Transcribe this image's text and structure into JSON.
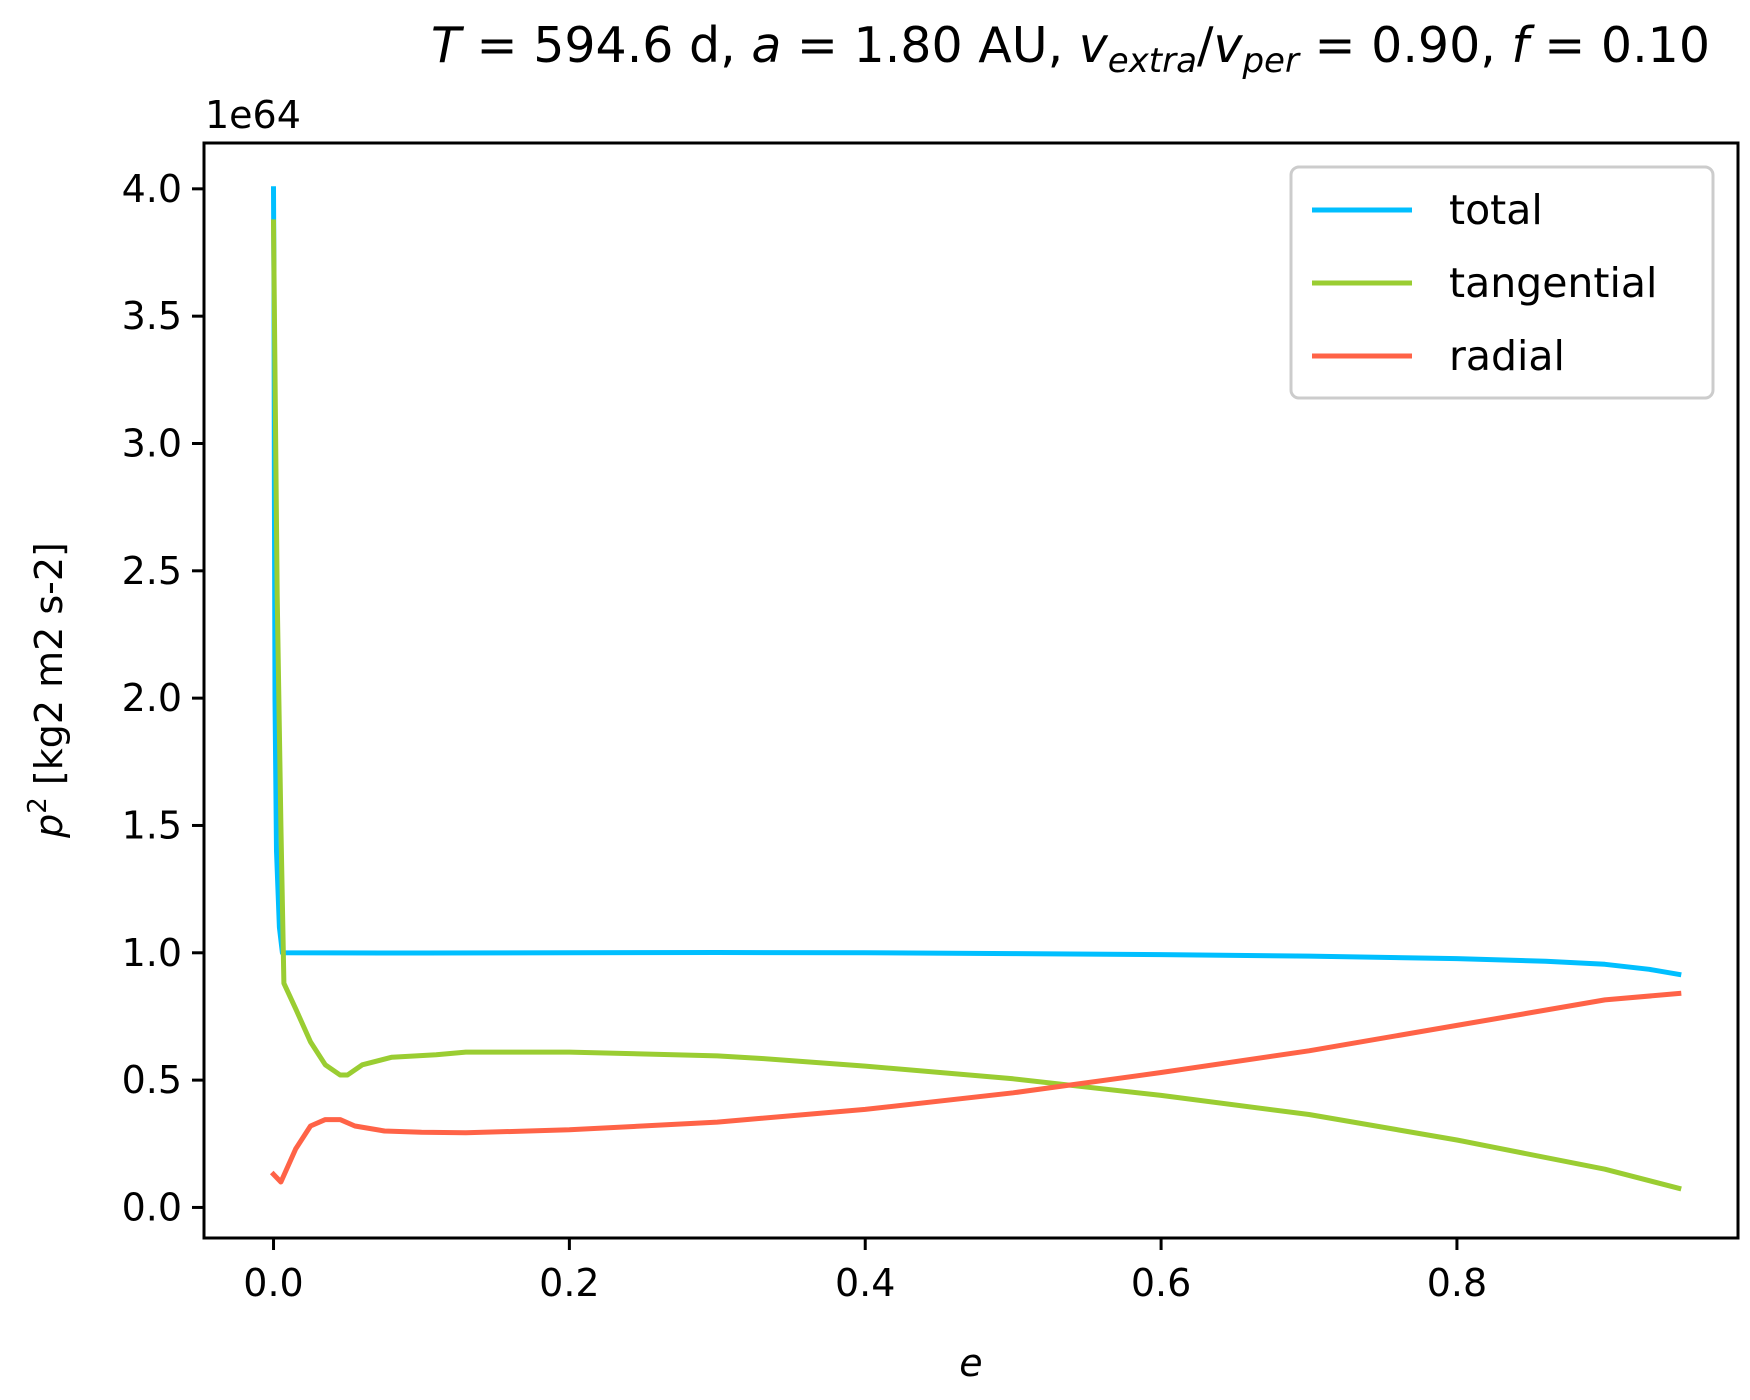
{
  "title": {
    "T_sym": "T",
    "T_val": " = 594.6 d, ",
    "a_sym": "a",
    "a_val": " = 1.80 AU, ",
    "v_sym": "v",
    "v_sub1": "extra",
    "slash": "/",
    "v_sub2": "per",
    "v_val": " = 0.90, ",
    "f_sym": "f",
    "f_val": " = 0.10"
  },
  "axes": {
    "x_label": "e",
    "y_label_p": "p",
    "y_label_exp": "2",
    "y_label_units": " [kg2 m2 s-2]",
    "y_offset_text": "1e64"
  },
  "chart_data": {
    "type": "line",
    "title": "T = 594.6 d, a = 1.80 AU, v_extra/v_per = 0.90, f = 0.10",
    "xlabel": "e",
    "ylabel": "p^2 [kg2 m2 s-2]",
    "y_scale_note": "1e64",
    "xlim": [
      -0.047,
      0.99
    ],
    "ylim": [
      -0.12,
      4.18
    ],
    "grid": false,
    "legend_position": "top-right",
    "x_ticks": [
      "0.0",
      "0.2",
      "0.4",
      "0.6",
      "0.8"
    ],
    "x_tick_values": [
      0.0,
      0.2,
      0.4,
      0.6,
      0.8
    ],
    "y_ticks": [
      "0.0",
      "0.5",
      "1.0",
      "1.5",
      "2.0",
      "2.5",
      "3.0",
      "3.5",
      "4.0"
    ],
    "y_tick_values": [
      0.0,
      0.5,
      1.0,
      1.5,
      2.0,
      2.5,
      3.0,
      3.5,
      4.0
    ],
    "series": [
      {
        "name": "total",
        "color": "#00bfff",
        "points": [
          [
            0.0,
            4.0
          ],
          [
            0.0003,
            3.6
          ],
          [
            0.0006,
            2.8
          ],
          [
            0.001,
            2.0
          ],
          [
            0.002,
            1.4
          ],
          [
            0.004,
            1.1
          ],
          [
            0.006,
            1.0
          ],
          [
            0.1,
            0.999
          ],
          [
            0.2,
            1.0
          ],
          [
            0.3,
            1.001
          ],
          [
            0.4,
            1.0
          ],
          [
            0.5,
            0.997
          ],
          [
            0.6,
            0.993
          ],
          [
            0.7,
            0.987
          ],
          [
            0.8,
            0.977
          ],
          [
            0.86,
            0.967
          ],
          [
            0.9,
            0.955
          ],
          [
            0.93,
            0.935
          ],
          [
            0.95,
            0.915
          ]
        ]
      },
      {
        "name": "tangential",
        "color": "#9acd32",
        "points": [
          [
            0.0,
            3.87
          ],
          [
            0.0025,
            2.4
          ],
          [
            0.005,
            1.5
          ],
          [
            0.007,
            0.88
          ],
          [
            0.015,
            0.78
          ],
          [
            0.025,
            0.65
          ],
          [
            0.035,
            0.56
          ],
          [
            0.045,
            0.52
          ],
          [
            0.05,
            0.52
          ],
          [
            0.06,
            0.56
          ],
          [
            0.08,
            0.59
          ],
          [
            0.11,
            0.6
          ],
          [
            0.13,
            0.61
          ],
          [
            0.2,
            0.61
          ],
          [
            0.3,
            0.595
          ],
          [
            0.33,
            0.585
          ],
          [
            0.4,
            0.555
          ],
          [
            0.5,
            0.505
          ],
          [
            0.6,
            0.44
          ],
          [
            0.7,
            0.365
          ],
          [
            0.8,
            0.265
          ],
          [
            0.9,
            0.15
          ],
          [
            0.95,
            0.075
          ]
        ]
      },
      {
        "name": "radial",
        "color": "#ff6347",
        "points": [
          [
            0.0,
            0.13
          ],
          [
            0.005,
            0.1
          ],
          [
            0.015,
            0.23
          ],
          [
            0.025,
            0.32
          ],
          [
            0.035,
            0.345
          ],
          [
            0.045,
            0.345
          ],
          [
            0.055,
            0.32
          ],
          [
            0.075,
            0.3
          ],
          [
            0.1,
            0.295
          ],
          [
            0.13,
            0.293
          ],
          [
            0.2,
            0.305
          ],
          [
            0.3,
            0.335
          ],
          [
            0.33,
            0.35
          ],
          [
            0.4,
            0.385
          ],
          [
            0.5,
            0.45
          ],
          [
            0.6,
            0.53
          ],
          [
            0.7,
            0.615
          ],
          [
            0.8,
            0.715
          ],
          [
            0.9,
            0.815
          ],
          [
            0.95,
            0.84
          ]
        ]
      }
    ]
  }
}
